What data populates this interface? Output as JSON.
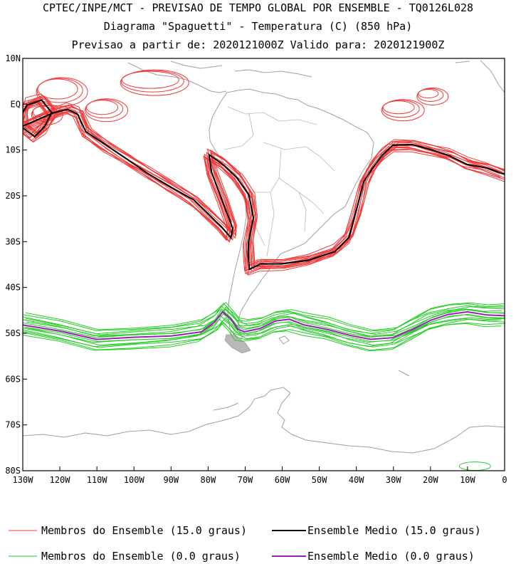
{
  "title": {
    "line1": "CPTEC/INPE/MCT - PREVISAO DE TEMPO GLOBAL POR ENSEMBLE - TQ0126L028",
    "line2": "Diagrama \"Spaguetti\" - Temperatura (C) (850 hPa)",
    "line3": "Previsao a partir de: 2020121000Z  Valido para: 2020121900Z"
  },
  "map": {
    "lat_labels": [
      "10N",
      "EQ",
      "10S",
      "20S",
      "30S",
      "40S",
      "50S",
      "60S",
      "70S",
      "80S"
    ],
    "lon_labels": [
      "130W",
      "120W",
      "110W",
      "100W",
      "90W",
      "80W",
      "70W",
      "60W",
      "50W",
      "40W",
      "30W",
      "20W",
      "10W",
      "0"
    ],
    "lon_range": [
      -130,
      0
    ],
    "lat_range": [
      -80,
      10
    ],
    "colors": {
      "members_15": "#f03a3a",
      "mean_15": "#000000",
      "members_0": "#22cc22",
      "mean_0": "#9a1fb5",
      "coast": "#a0a0a0"
    },
    "contours": {
      "mean_15": [
        [
          -130,
          -5
        ],
        [
          -127,
          -7
        ],
        [
          -124,
          -5
        ],
        [
          -122,
          -2
        ],
        [
          -125,
          1
        ],
        [
          -129,
          0
        ],
        [
          -130,
          -2
        ],
        [
          -130,
          -5
        ],
        [
          -122,
          -2
        ],
        [
          -118,
          -1
        ],
        [
          -115,
          -2
        ],
        [
          -113,
          -6
        ],
        [
          -108,
          -9
        ],
        [
          -102,
          -12
        ],
        [
          -96,
          -15
        ],
        [
          -90,
          -18
        ],
        [
          -84,
          -21
        ],
        [
          -80,
          -24
        ],
        [
          -76,
          -27
        ],
        [
          -74,
          -29
        ],
        [
          -73.5,
          -27
        ],
        [
          -76,
          -21
        ],
        [
          -79,
          -15
        ],
        [
          -80,
          -11
        ],
        [
          -76,
          -13
        ],
        [
          -72,
          -16
        ],
        [
          -69,
          -20
        ],
        [
          -68,
          -25
        ],
        [
          -69,
          -30
        ],
        [
          -69,
          -33
        ],
        [
          -69,
          -36
        ],
        [
          -66,
          -35
        ],
        [
          -60,
          -35
        ],
        [
          -53,
          -34
        ],
        [
          -46,
          -32
        ],
        [
          -42,
          -29
        ],
        [
          -40,
          -24
        ],
        [
          -38,
          -17
        ],
        [
          -36,
          -14
        ],
        [
          -33,
          -11
        ],
        [
          -30,
          -9
        ],
        [
          -25,
          -9
        ],
        [
          -20,
          -10
        ],
        [
          -15,
          -11
        ],
        [
          -10,
          -13
        ],
        [
          -5,
          -14
        ],
        [
          0,
          -15.5
        ]
      ],
      "mean_0": [
        [
          -130,
          -48
        ],
        [
          -120,
          -49.5
        ],
        [
          -110,
          -51.5
        ],
        [
          -100,
          -51
        ],
        [
          -90,
          -50.5
        ],
        [
          -82,
          -49.5
        ],
        [
          -78,
          -47.5
        ],
        [
          -76,
          -45.5
        ],
        [
          -74,
          -47
        ],
        [
          -72,
          -49
        ],
        [
          -70,
          -49.5
        ],
        [
          -66,
          -49
        ],
        [
          -62,
          -47.5
        ],
        [
          -58,
          -47
        ],
        [
          -54,
          -48
        ],
        [
          -48,
          -49
        ],
        [
          -42,
          -50.5
        ],
        [
          -36,
          -51.5
        ],
        [
          -30,
          -51
        ],
        [
          -25,
          -49
        ],
        [
          -20,
          -47
        ],
        [
          -15,
          -46
        ],
        [
          -10,
          -45.5
        ],
        [
          -5,
          -46
        ],
        [
          0,
          -46
        ]
      ]
    }
  },
  "legend": {
    "members_15": "Membros do Ensemble (15.0 graus)",
    "mean_15": "Ensemble Medio (15.0 graus)",
    "members_0": "Membros do Ensemble (0.0 graus)",
    "mean_0": "Ensemble Medio (0.0 graus)"
  }
}
